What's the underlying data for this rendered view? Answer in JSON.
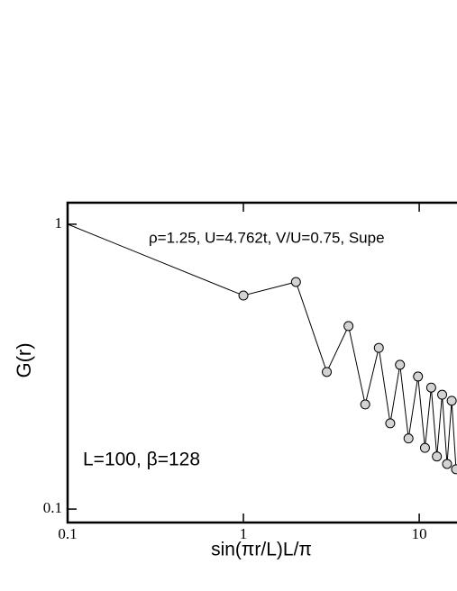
{
  "chart_data": {
    "type": "line",
    "annotation": "ρ=1.25, U=4.762t, V/U=0.75, Supe",
    "annotation2": "L=100, β=128",
    "xlabel": "sin(πr/L)L/π",
    "ylabel": "G(r)",
    "log_x": true,
    "log_y": true,
    "xlim": [
      0.1,
      16.4
    ],
    "ylim": [
      0.0897,
      1.19
    ],
    "xticks": [
      0.1,
      1,
      10
    ],
    "yticks": [
      0.1,
      1
    ],
    "series": [
      {
        "color": "#d3d3d3",
        "x": [
          0.1,
          1,
          1.99,
          2.98,
          3.96,
          4.93,
          5.89,
          6.84,
          7.77,
          8.69,
          9.84,
          10.78,
          11.7,
          12.6,
          13.5,
          14.4,
          15.3,
          16.2
        ],
        "values": [
          1,
          0.562,
          0.627,
          0.303,
          0.439,
          0.233,
          0.368,
          0.2,
          0.321,
          0.177,
          0.292,
          0.164,
          0.267,
          0.153,
          0.252,
          0.144,
          0.24,
          0.138
        ]
      }
    ]
  }
}
